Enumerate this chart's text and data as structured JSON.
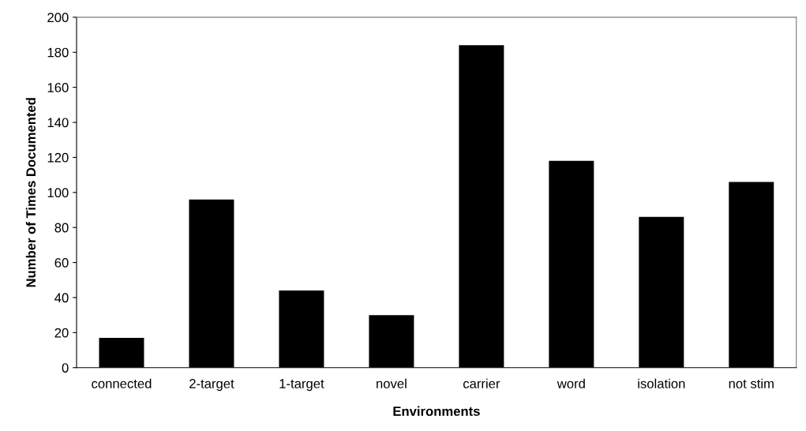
{
  "chart_data": {
    "type": "bar",
    "xlabel": "Environments",
    "ylabel": "Number of Times Documented",
    "categories": [
      "connected",
      "2-target",
      "1-target",
      "novel",
      "carrier",
      "word",
      "isolation",
      "not stim"
    ],
    "values": [
      17,
      96,
      44,
      30,
      184,
      118,
      86,
      106
    ],
    "color": "#000000",
    "ylim": [
      0,
      200
    ],
    "yticks": [
      0,
      20,
      40,
      60,
      80,
      100,
      120,
      140,
      160,
      180,
      200
    ],
    "grid": false
  }
}
